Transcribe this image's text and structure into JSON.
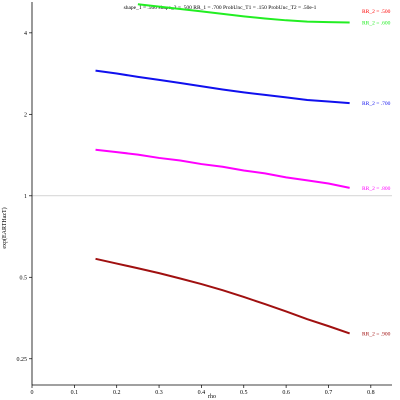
{
  "chart_data": {
    "type": "line",
    "title": "shape_1 = .500  shape_2 = .500  RR_1 = .700  ProbUnc_T1 = .150  ProbUnc_T2 = .50e-1",
    "xlabel": "rho",
    "ylabel": "exp(EARTHazT)",
    "xlim": [
      0,
      0.85
    ],
    "ylim": [
      0.2,
      5.2
    ],
    "yscale": "log",
    "x_ticks": [
      0,
      0.1,
      0.2,
      0.3,
      0.4,
      0.5,
      0.6,
      0.7,
      0.8
    ],
    "x_tick_labels": [
      "0",
      "0.1",
      "0.2",
      "0.3",
      "0.4",
      "0.5",
      "0.6",
      "0.7",
      "0.8"
    ],
    "y_ticks": [
      0.25,
      0.5,
      1,
      2,
      4
    ],
    "y_tick_labels": [
      "0.25",
      "0.5",
      "1",
      "2",
      "4"
    ],
    "reference_line": {
      "y": 1,
      "color": "#bbbbbb"
    },
    "grid": false,
    "series": [
      {
        "name": "RR_2 = .500",
        "color": "#ff0000",
        "x": [],
        "y": []
      },
      {
        "name": "RR_2 = .600",
        "color": "#22ee22",
        "x": [
          0.25,
          0.3,
          0.35,
          0.4,
          0.45,
          0.5,
          0.55,
          0.6,
          0.65,
          0.7,
          0.75
        ],
        "y": [
          5.1,
          5.0,
          4.9,
          4.8,
          4.7,
          4.6,
          4.52,
          4.45,
          4.4,
          4.38,
          4.37
        ]
      },
      {
        "name": "RR_2 = .700",
        "color": "#1010ee",
        "x": [
          0.15,
          0.2,
          0.25,
          0.3,
          0.35,
          0.4,
          0.45,
          0.5,
          0.55,
          0.6,
          0.65,
          0.7,
          0.75
        ],
        "y": [
          2.9,
          2.83,
          2.75,
          2.68,
          2.61,
          2.54,
          2.47,
          2.41,
          2.36,
          2.31,
          2.26,
          2.23,
          2.2
        ]
      },
      {
        "name": "RR_2 = .800",
        "color": "#ff00ff",
        "x": [
          0.15,
          0.2,
          0.25,
          0.3,
          0.35,
          0.4,
          0.45,
          0.5,
          0.55,
          0.6,
          0.65,
          0.7,
          0.75
        ],
        "y": [
          1.48,
          1.45,
          1.42,
          1.38,
          1.35,
          1.31,
          1.28,
          1.24,
          1.21,
          1.17,
          1.14,
          1.11,
          1.07
        ]
      },
      {
        "name": "RR_2 = .900",
        "color": "#a01010",
        "x": [
          0.15,
          0.2,
          0.25,
          0.3,
          0.35,
          0.4,
          0.45,
          0.5,
          0.55,
          0.6,
          0.65,
          0.7,
          0.75
        ],
        "y": [
          0.585,
          0.562,
          0.54,
          0.518,
          0.495,
          0.472,
          0.448,
          0.423,
          0.398,
          0.374,
          0.35,
          0.33,
          0.31
        ]
      }
    ]
  }
}
